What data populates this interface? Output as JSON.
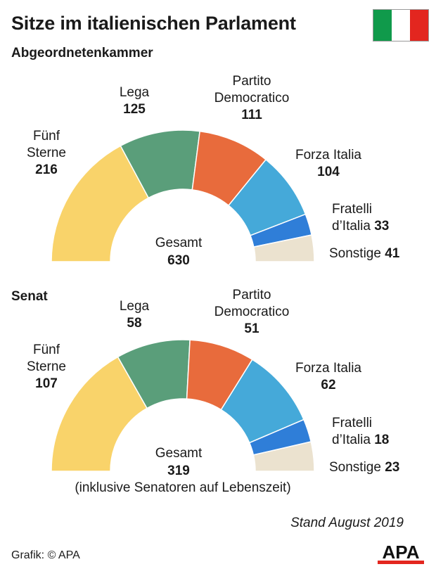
{
  "header": {
    "title": "Sitze im italienischen Parlament",
    "flag_colors": [
      "#109a4b",
      "#ffffff",
      "#e3261f"
    ]
  },
  "footer": {
    "stand": "Stand August 2019",
    "credit": "Grafik: © APA",
    "logo_text": "APA"
  },
  "colors": {
    "fuenf_sterne": "#f9d36a",
    "lega": "#5a9e7a",
    "pd": "#e86b3c",
    "forza_italia": "#45a9d9",
    "fratelli": "#2f7ed8",
    "sonstige": "#ebe2cf"
  },
  "chart_data": [
    {
      "type": "pie",
      "subtype": "half-donut",
      "title": "Abgeordnetenkammer",
      "total_label": "Gesamt",
      "total": 630,
      "note": "",
      "series": [
        {
          "name": "Fünf Sterne",
          "label_lines": [
            "Fünf",
            "Sterne"
          ],
          "value": 216
        },
        {
          "name": "Lega",
          "label_lines": [
            "Lega"
          ],
          "value": 125
        },
        {
          "name": "Partito Democratico",
          "label_lines": [
            "Partito",
            "Democratico"
          ],
          "value": 111
        },
        {
          "name": "Forza Italia",
          "label_lines": [
            "Forza Italia"
          ],
          "value": 104
        },
        {
          "name": "Fratelli d’Italia",
          "label_lines": [
            "Fratelli",
            "d’Italia"
          ],
          "value": 33
        },
        {
          "name": "Sonstige",
          "label_lines": [
            "Sonstige"
          ],
          "value": 41
        }
      ]
    },
    {
      "type": "pie",
      "subtype": "half-donut",
      "title": "Senat",
      "total_label": "Gesamt",
      "total": 319,
      "note": "(inklusive Senatoren auf Lebenszeit)",
      "series": [
        {
          "name": "Fünf Sterne",
          "label_lines": [
            "Fünf",
            "Sterne"
          ],
          "value": 107
        },
        {
          "name": "Lega",
          "label_lines": [
            "Lega"
          ],
          "value": 58
        },
        {
          "name": "Partito Democratico",
          "label_lines": [
            "Partito",
            "Democratico"
          ],
          "value": 51
        },
        {
          "name": "Forza Italia",
          "label_lines": [
            "Forza Italia"
          ],
          "value": 62
        },
        {
          "name": "Fratelli d’Italia",
          "label_lines": [
            "Fratelli",
            "d’Italia"
          ],
          "value": 18
        },
        {
          "name": "Sonstige",
          "label_lines": [
            "Sonstige"
          ],
          "value": 23
        }
      ]
    }
  ]
}
